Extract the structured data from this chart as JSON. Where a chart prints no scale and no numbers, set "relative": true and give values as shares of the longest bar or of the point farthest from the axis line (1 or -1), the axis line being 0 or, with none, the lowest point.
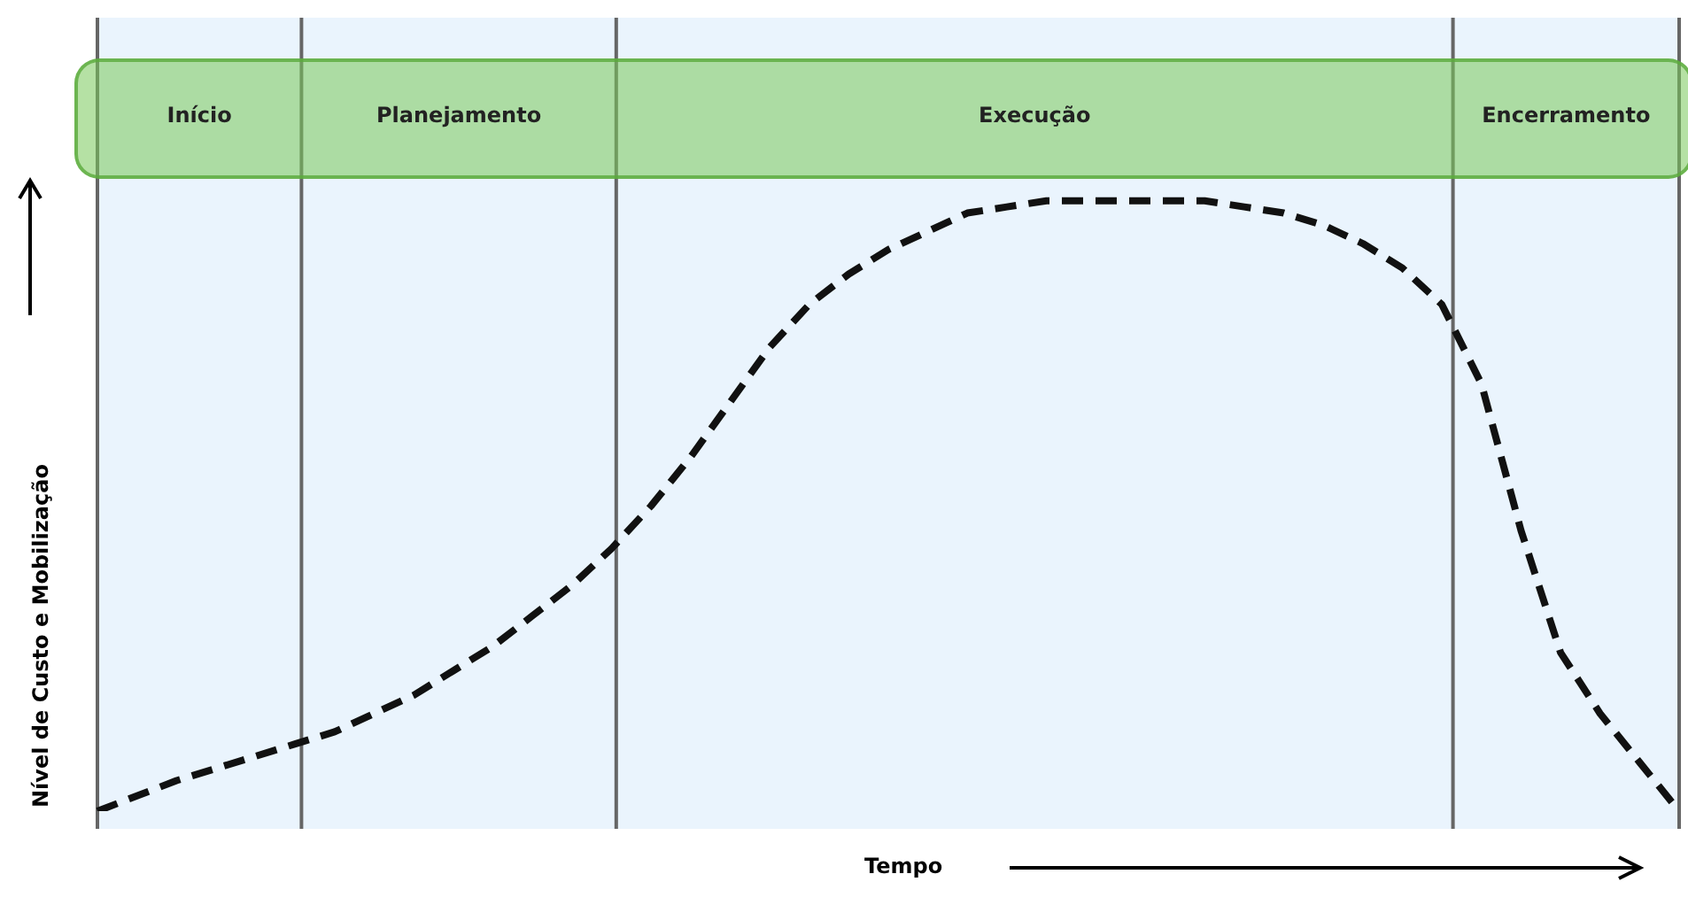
{
  "chart_data": {
    "type": "line",
    "relative": true,
    "xlabel": "Tempo",
    "ylabel": "Nível de Custo e Mobilização",
    "line_style": "dashed",
    "marker": "none",
    "categories": [
      null,
      null,
      null,
      null,
      null,
      null,
      null,
      null,
      null,
      null,
      null,
      null,
      null,
      null,
      null,
      null,
      null,
      null,
      null,
      null,
      null,
      null,
      null,
      null,
      null,
      null,
      null,
      null,
      null,
      null,
      null,
      null,
      null,
      null,
      null,
      null,
      null,
      null,
      null,
      null,
      null
    ],
    "series": [
      {
        "color": "#111111",
        "values": [
          0,
          0.025,
          0.05,
          0.07,
          0.09,
          0.11,
          0.13,
          0.16,
          0.19,
          0.23,
          0.27,
          0.32,
          0.37,
          0.43,
          0.5,
          0.58,
          0.67,
          0.76,
          0.83,
          0.88,
          0.92,
          0.95,
          0.98,
          0.99,
          1,
          1,
          1,
          1,
          1,
          0.99,
          0.98,
          0.96,
          0.93,
          0.89,
          0.83,
          0.7,
          0.46,
          0.26,
          0.16,
          0.08,
          0
        ]
      }
    ],
    "annotations": [
      "Início",
      "Planejamento",
      "Execução",
      "Encerramento"
    ]
  }
}
